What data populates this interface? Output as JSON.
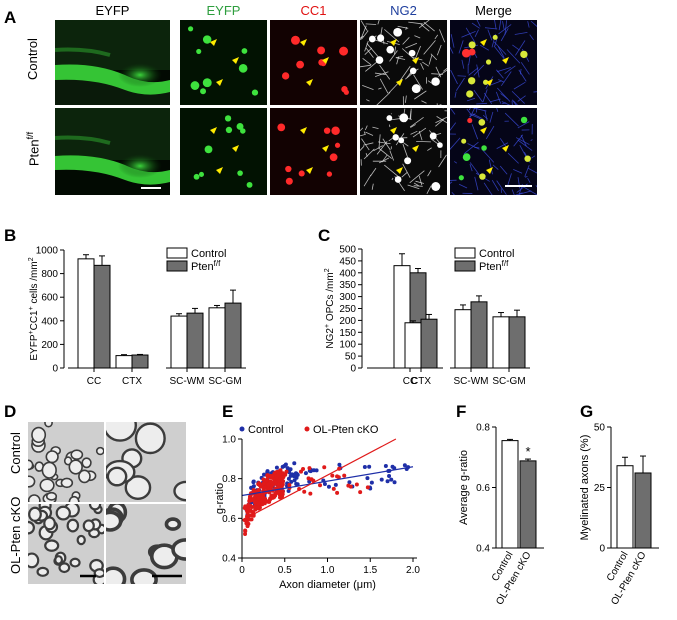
{
  "panel_letters": [
    "A",
    "B",
    "C",
    "D",
    "E",
    "F",
    "G"
  ],
  "panelA": {
    "headers": [
      {
        "text": "EYFP",
        "color": "#000000"
      },
      {
        "text": "EYFP",
        "color": "#2e9e3e"
      },
      {
        "text": "CC1",
        "color": "#e01010"
      },
      {
        "text": "NG2",
        "color": "#1f3f9e"
      },
      {
        "text": "Merge",
        "color": "#000000"
      }
    ],
    "row_labels": [
      "Control",
      "Pten"
    ],
    "row2_superscript": "f/f"
  },
  "panelD": {
    "row_labels": [
      "Control",
      "OL-Pten cKO"
    ]
  },
  "chart_data": [
    {
      "id": "B",
      "type": "bar",
      "ylabel_main": "EYFP",
      "ylabel_sup1": "+",
      "ylabel_mid": "CC1",
      "ylabel_sup2": "+",
      "ylabel_end": " cells /mm",
      "ylabel_sup3": "2",
      "ylim": [
        0,
        1000
      ],
      "yticks": [
        "0",
        "200",
        "400",
        "600",
        "800",
        "1000"
      ],
      "categories": [
        "CC",
        "CTX",
        "SC-WM",
        "SC-GM"
      ],
      "series": [
        {
          "name": "Control",
          "values": [
            925,
            105,
            440,
            510
          ],
          "errors": [
            35,
            8,
            20,
            20
          ],
          "color": "#ffffff"
        },
        {
          "name": "Pten",
          "name_sup": "f/f",
          "values": [
            870,
            110,
            465,
            550
          ],
          "errors": [
            80,
            5,
            40,
            110
          ],
          "color": "#6e6e6e"
        }
      ]
    },
    {
      "id": "C",
      "type": "bar",
      "ylabel_main": "NG2",
      "ylabel_sup1": "+",
      "ylabel_end": " OPCs /mm",
      "ylabel_sup3": "2",
      "ylim": [
        0,
        500
      ],
      "yticks": [
        "0",
        "50",
        "100",
        "150",
        "200",
        "250",
        "300",
        "350",
        "400",
        "450",
        "500"
      ],
      "categories": [
        "CC",
        "CTX",
        "SC-WM",
        "SC-GM"
      ],
      "series": [
        {
          "name": "Control",
          "values": [
            430,
            190,
            245,
            215
          ],
          "errors": [
            50,
            8,
            20,
            18
          ],
          "color": "#ffffff"
        },
        {
          "name": "Pten",
          "name_sup": "f/f",
          "values": [
            400,
            205,
            278,
            215
          ],
          "errors": [
            18,
            20,
            25,
            28
          ],
          "color": "#6e6e6e"
        }
      ]
    },
    {
      "id": "E",
      "type": "scatter",
      "xlabel": "Axon diameter (μm)",
      "ylabel": "g-ratio",
      "xlim": [
        0,
        2.0
      ],
      "ylim": [
        0.4,
        1.0
      ],
      "xticks": [
        "0",
        "0.5",
        "1.0",
        "1.5",
        "2.0"
      ],
      "yticks": [
        "0.4",
        "0.6",
        "0.8",
        "1.0"
      ],
      "series": [
        {
          "name": "Control",
          "color": "#1f2fa8",
          "fit": [
            [
              0,
              0.715
            ],
            [
              2.0,
              0.86
            ]
          ]
        },
        {
          "name": "OL-Pten cKO",
          "color": "#e01a1a",
          "fit": [
            [
              0,
              0.59
            ],
            [
              1.8,
              1.0
            ]
          ]
        }
      ]
    },
    {
      "id": "F",
      "type": "bar",
      "ylabel": "Average g-ratio",
      "ylim": [
        0.4,
        0.8
      ],
      "yticks": [
        "0.4",
        "0.6",
        "0.8"
      ],
      "categories": [
        "Control",
        "OL-Pten cKO"
      ],
      "values": [
        0.755,
        0.688
      ],
      "errors": [
        0.004,
        0.006
      ],
      "colors": [
        "#ffffff",
        "#6e6e6e"
      ],
      "annotation": "*"
    },
    {
      "id": "G",
      "type": "bar",
      "ylabel": "Myelinated axons (%)",
      "ylim": [
        0,
        50
      ],
      "yticks": [
        "0",
        "25",
        "50"
      ],
      "categories": [
        "Control",
        "OL-Pten cKO"
      ],
      "values": [
        34,
        31
      ],
      "errors": [
        3.5,
        7
      ],
      "colors": [
        "#ffffff",
        "#6e6e6e"
      ]
    }
  ]
}
